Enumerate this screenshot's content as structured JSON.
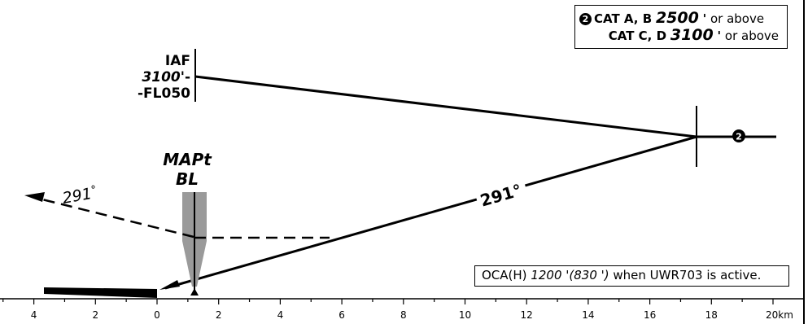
{
  "conditions": {
    "badge": "2",
    "line1": {
      "cat": "CAT A, B",
      "alt": "2500",
      "ft": "'",
      "suffix": "or above"
    },
    "line2": {
      "cat": "CAT C, D",
      "alt": "3100",
      "ft": "'",
      "suffix": "or above"
    }
  },
  "iaf": {
    "name": "IAF",
    "alt_top": "3100",
    "alt_top_suffix": "'-",
    "alt_bottom": "-FL050"
  },
  "mapt": {
    "name": "MAPt",
    "ident": "BL"
  },
  "segment_badge": "2",
  "final_track": "291°",
  "missed_track": {
    "value": "291",
    "deg": "°"
  },
  "oca": {
    "prefix": "OCA(H)",
    "value": "1200 '",
    "paren": "(830 ')",
    "suffix": "when UWR703 is active."
  },
  "scale": {
    "labels": [
      "4",
      "2",
      "0",
      "2",
      "4",
      "6",
      "8",
      "10",
      "12",
      "14",
      "16",
      "18",
      "20km"
    ]
  },
  "colors": {
    "ink": "#000000",
    "shade": "#9a9a9a"
  }
}
